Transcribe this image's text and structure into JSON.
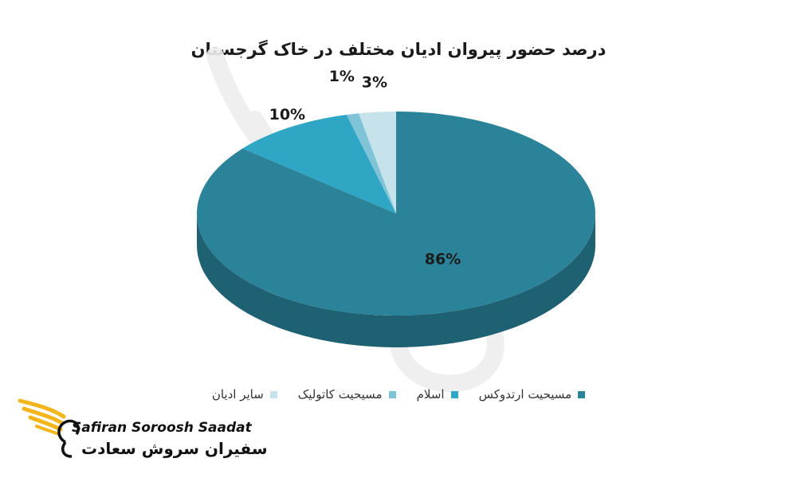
{
  "colors": {
    "orthodox": "#2b8399",
    "islam": "#2fa6c4",
    "catholic": "#7fc3d6",
    "other": "#c6e3ec",
    "side_dark": "#1e6173"
  },
  "chart_data": {
    "type": "pie",
    "title": "درصد حضور پیروان ادیان مختلف در خاک گرجستان",
    "slices": [
      {
        "name": "مسیحیت ارتدوکس",
        "value": 86,
        "label": "86%"
      },
      {
        "name": "اسلام",
        "value": 10,
        "label": "10%"
      },
      {
        "name": "مسیحیت کاتولیک",
        "value": 1,
        "label": "1%"
      },
      {
        "name": "سایر ادیان",
        "value": 3,
        "label": "3%"
      }
    ],
    "legend_position": "bottom"
  },
  "logo": {
    "name_en": "Safiran Soroosh Saadat",
    "name_fa": "سفیران سروش سعادت"
  }
}
